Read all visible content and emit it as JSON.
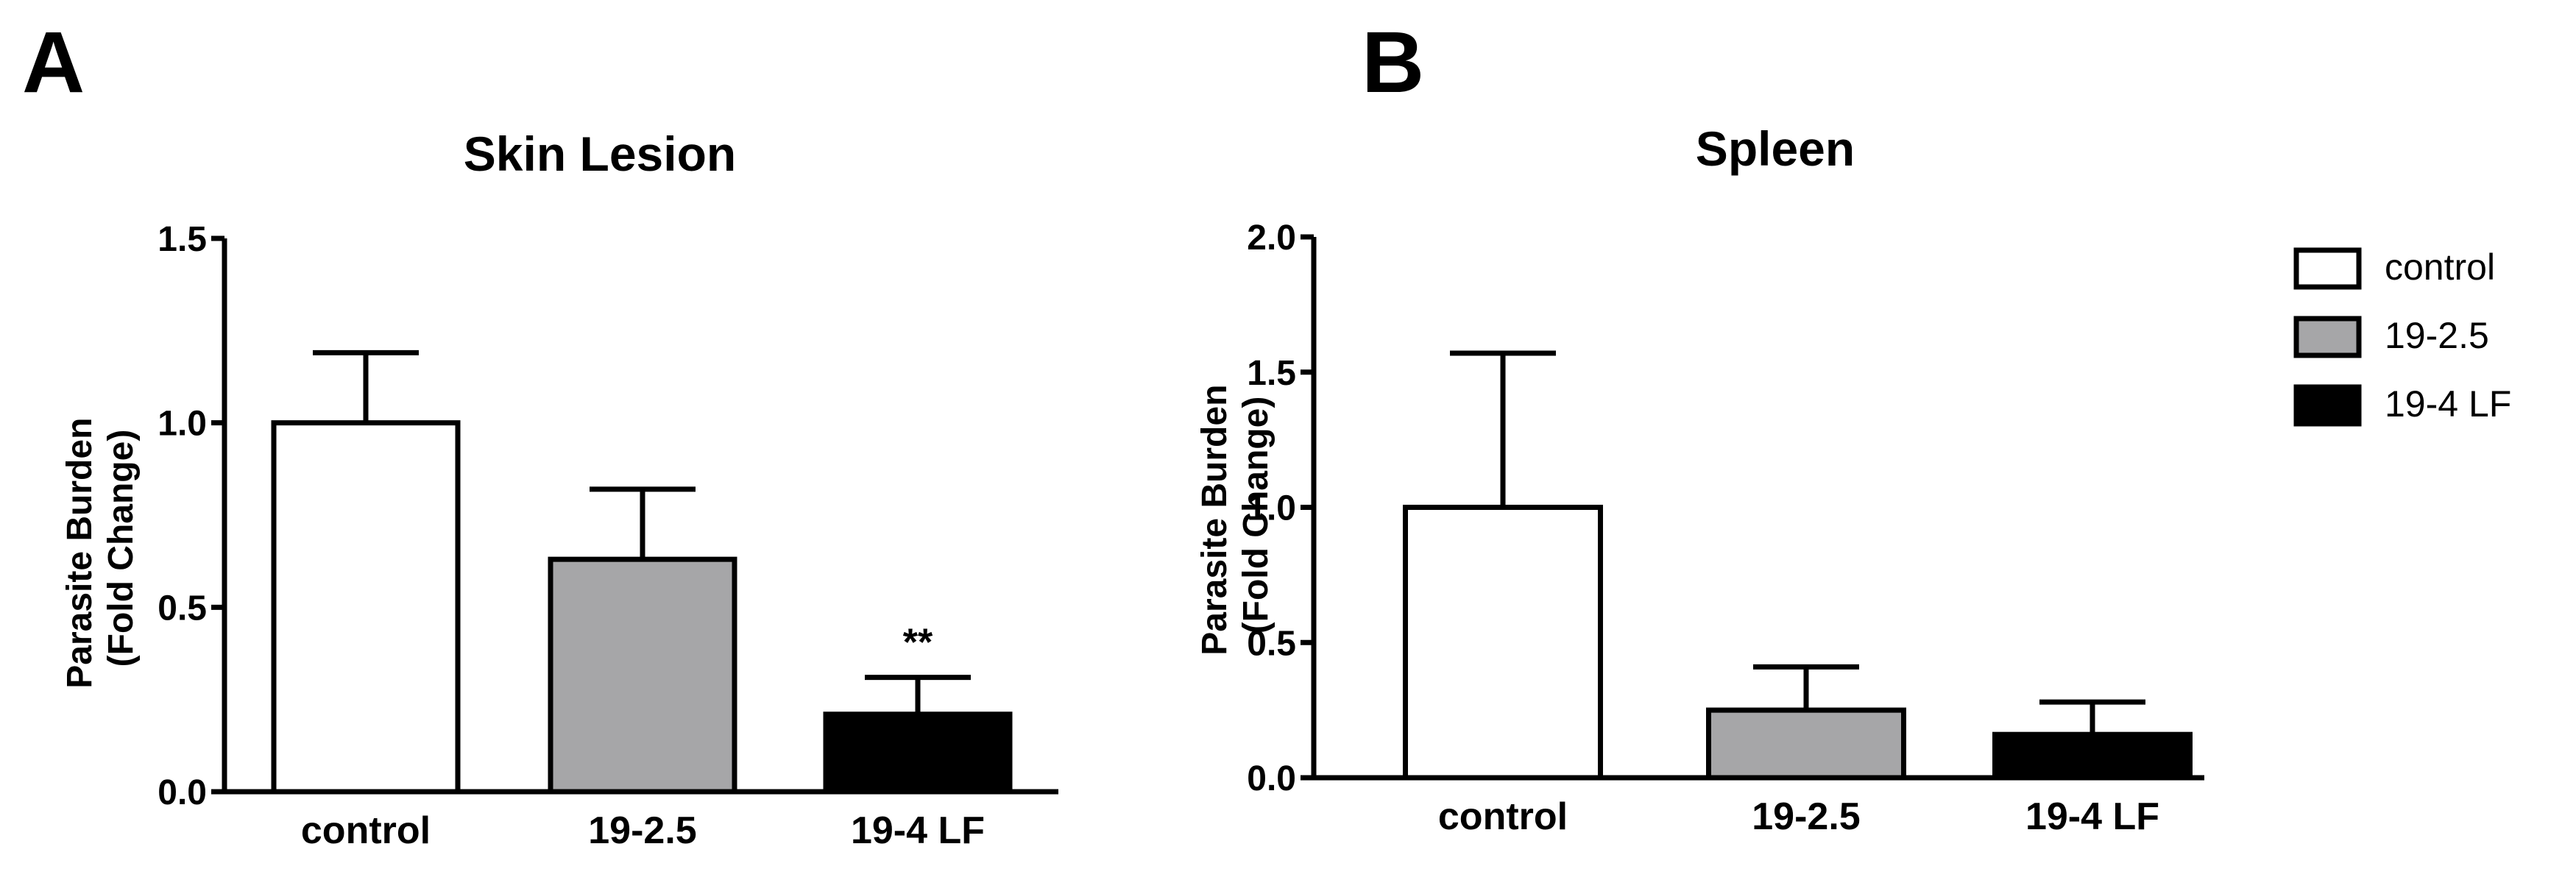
{
  "panels": [
    {
      "letter": "A"
    },
    {
      "letter": "B"
    }
  ],
  "colors": {
    "control": "#ffffff",
    "19-2.5": "#a6a6a8",
    "19-4 LF": "#000000",
    "stroke": "#000000"
  },
  "legend": {
    "position": "right",
    "entries": [
      "control",
      "19-2.5",
      "19-4 LF"
    ]
  },
  "chart_data": [
    {
      "type": "bar",
      "title": "Skin Lesion",
      "ylabel": "Parasite Burden\n(Fold Change)",
      "xlabel": "",
      "categories": [
        "control",
        "19-2.5",
        "19-4 LF"
      ],
      "values": [
        1.0,
        0.63,
        0.21
      ],
      "error_upper": [
        0.19,
        0.19,
        0.1
      ],
      "ylim": [
        0,
        1.5
      ],
      "yticks": [
        "0.0",
        "0.5",
        "1.0",
        "1.5"
      ],
      "annotations": [
        {
          "category": "19-4 LF",
          "text": "**"
        }
      ],
      "grid": false
    },
    {
      "type": "bar",
      "title": "Spleen",
      "ylabel": "Parasite Burden\n(Fold Change)",
      "xlabel": "",
      "categories": [
        "control",
        "19-2.5",
        "19-4 LF"
      ],
      "values": [
        1.0,
        0.25,
        0.16
      ],
      "error_upper": [
        0.57,
        0.16,
        0.12
      ],
      "ylim": [
        0,
        2.0
      ],
      "yticks": [
        "0.0",
        "0.5",
        "1.0",
        "1.5",
        "2.0"
      ],
      "annotations": [],
      "grid": false
    }
  ]
}
